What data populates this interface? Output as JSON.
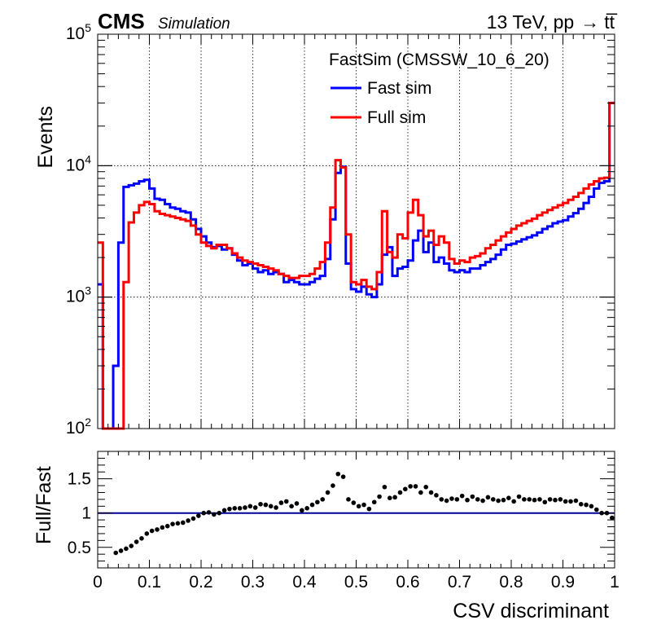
{
  "header": {
    "experiment": "CMS",
    "status": "Simulation",
    "energy_text": "13 TeV, pp",
    "arrow": "→",
    "process": "tt̅"
  },
  "legend": {
    "header": "FastSim (CMSSW_10_6_20)",
    "entries": [
      {
        "label": "Fast sim",
        "color": "#0000ff"
      },
      {
        "label": "Full sim",
        "color": "#ff0000"
      }
    ]
  },
  "colors": {
    "fast": "#0000ff",
    "full": "#ff0000",
    "ratio_line": "#000099",
    "markers": "#000000",
    "grid": "#000000"
  },
  "chart_data": [
    {
      "type": "line",
      "style": "step-histogram",
      "log_y": true,
      "grid": true,
      "xlim": [
        0,
        1
      ],
      "ylim": [
        100,
        100000
      ],
      "xlabel": "",
      "ylabel": "Events",
      "y_ticks": [
        {
          "base": "10",
          "exp": "2",
          "value": 100
        },
        {
          "base": "10",
          "exp": "3",
          "value": 1000
        },
        {
          "base": "10",
          "exp": "4",
          "value": 10000
        },
        {
          "base": "10",
          "exp": "5",
          "value": 100000
        }
      ],
      "legend_position": "top-center",
      "bin_edges_step": 0.01,
      "series": [
        {
          "name": "Fast sim",
          "color": "#0000ff",
          "values": [
            1250,
            100,
            100,
            300,
            2600,
            6900,
            7100,
            7300,
            7600,
            7800,
            6700,
            5600,
            5500,
            5100,
            4800,
            4700,
            4500,
            4400,
            3900,
            3300,
            2900,
            2600,
            2400,
            2450,
            2300,
            2350,
            2100,
            1900,
            1750,
            1800,
            1650,
            1550,
            1600,
            1500,
            1550,
            1500,
            1300,
            1350,
            1300,
            1250,
            1250,
            1300,
            1380,
            1450,
            1950,
            3900,
            8800,
            9800,
            1800,
            1150,
            1100,
            1200,
            1050,
            1000,
            1250,
            2100,
            2400,
            1450,
            1650,
            1700,
            1900,
            2700,
            3200,
            2200,
            2600,
            1850,
            2000,
            1800,
            1600,
            1550,
            1600,
            1550,
            1650,
            1650,
            1750,
            1850,
            1950,
            2100,
            2300,
            2500,
            2550,
            2650,
            2750,
            2850,
            2950,
            3100,
            3300,
            3450,
            3650,
            3750,
            3850,
            4100,
            4350,
            4700,
            5200,
            5800,
            6700,
            7400,
            7600,
            30000
          ]
        },
        {
          "name": "Full sim",
          "color": "#ff0000",
          "values": [
            2600,
            100,
            100,
            100,
            100,
            1300,
            3700,
            4400,
            5000,
            5300,
            5100,
            4500,
            4300,
            4200,
            4100,
            4000,
            3900,
            3800,
            3500,
            3000,
            2600,
            2450,
            2350,
            2500,
            2500,
            2350,
            2150,
            2000,
            1900,
            1850,
            1800,
            1750,
            1700,
            1650,
            1600,
            1500,
            1450,
            1400,
            1400,
            1450,
            1450,
            1500,
            1650,
            1850,
            2600,
            4800,
            11000,
            9700,
            3000,
            1300,
            1250,
            1350,
            1200,
            1150,
            1550,
            4500,
            2200,
            2000,
            3000,
            2800,
            4400,
            5500,
            4200,
            2900,
            3200,
            2500,
            2900,
            2600,
            1950,
            1800,
            1900,
            1850,
            2000,
            2050,
            2150,
            2350,
            2500,
            2700,
            2900,
            3100,
            3300,
            3500,
            3650,
            3800,
            3950,
            4200,
            4400,
            4600,
            4800,
            5000,
            5200,
            5500,
            5800,
            6200,
            6700,
            7200,
            7600,
            8000,
            8100,
            30000
          ]
        }
      ]
    },
    {
      "type": "scatter",
      "grid": false,
      "xlim": [
        0,
        1
      ],
      "ylim": [
        0.2,
        1.9
      ],
      "xlabel": "CSV discriminant",
      "ylabel": "Full/Fast",
      "x_ticks": [
        "0",
        "0.1",
        "0.2",
        "0.3",
        "0.4",
        "0.5",
        "0.6",
        "0.7",
        "0.8",
        "0.9",
        "1"
      ],
      "y_ticks": [
        "0.5",
        "1",
        "1.5"
      ],
      "reference_line": 1,
      "x": [
        0.035,
        0.045,
        0.055,
        0.065,
        0.075,
        0.085,
        0.095,
        0.105,
        0.115,
        0.125,
        0.135,
        0.145,
        0.155,
        0.165,
        0.175,
        0.185,
        0.195,
        0.205,
        0.215,
        0.225,
        0.235,
        0.245,
        0.255,
        0.265,
        0.275,
        0.285,
        0.295,
        0.305,
        0.315,
        0.325,
        0.335,
        0.345,
        0.355,
        0.365,
        0.375,
        0.385,
        0.395,
        0.405,
        0.415,
        0.425,
        0.435,
        0.445,
        0.455,
        0.465,
        0.475,
        0.485,
        0.495,
        0.505,
        0.515,
        0.525,
        0.535,
        0.545,
        0.555,
        0.565,
        0.575,
        0.585,
        0.595,
        0.605,
        0.615,
        0.625,
        0.635,
        0.645,
        0.655,
        0.665,
        0.675,
        0.685,
        0.695,
        0.705,
        0.715,
        0.725,
        0.735,
        0.745,
        0.755,
        0.765,
        0.775,
        0.785,
        0.795,
        0.805,
        0.815,
        0.825,
        0.835,
        0.845,
        0.855,
        0.865,
        0.875,
        0.885,
        0.895,
        0.905,
        0.915,
        0.925,
        0.935,
        0.945,
        0.955,
        0.965,
        0.975,
        0.985,
        0.995
      ],
      "y": [
        0.42,
        0.45,
        0.48,
        0.52,
        0.58,
        0.63,
        0.7,
        0.74,
        0.76,
        0.79,
        0.81,
        0.84,
        0.85,
        0.86,
        0.89,
        0.92,
        0.96,
        1.0,
        1.01,
        0.98,
        1.0,
        1.04,
        1.06,
        1.07,
        1.07,
        1.08,
        1.1,
        1.08,
        1.13,
        1.12,
        1.1,
        1.08,
        1.15,
        1.17,
        1.1,
        1.14,
        1.04,
        1.07,
        1.12,
        1.16,
        1.2,
        1.3,
        1.4,
        1.57,
        1.53,
        1.2,
        1.15,
        1.1,
        1.12,
        1.06,
        1.16,
        1.24,
        1.38,
        1.22,
        1.23,
        1.3,
        1.35,
        1.39,
        1.39,
        1.3,
        1.38,
        1.3,
        1.26,
        1.2,
        1.18,
        1.21,
        1.2,
        1.25,
        1.19,
        1.24,
        1.2,
        1.18,
        1.23,
        1.2,
        1.18,
        1.19,
        1.22,
        1.17,
        1.24,
        1.2,
        1.2,
        1.19,
        1.2,
        1.16,
        1.2,
        1.19,
        1.2,
        1.17,
        1.17,
        1.18,
        1.13,
        1.12,
        1.1,
        1.05,
        1.0,
        1.0,
        0.93
      ]
    }
  ]
}
